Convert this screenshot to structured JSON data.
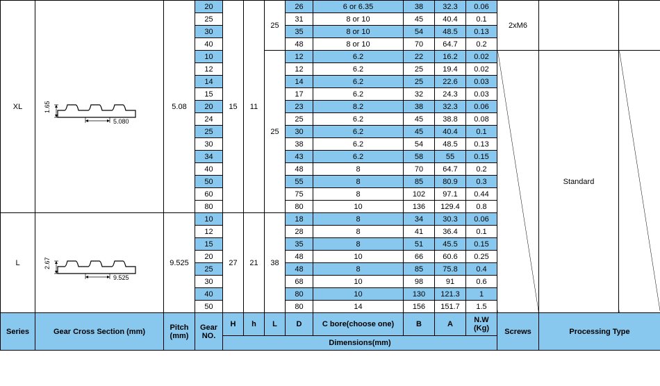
{
  "header": {
    "series": "Series",
    "gear_cross_section": "Gear Cross Section (mm)",
    "pitch": "Pitch (mm)",
    "gear_no": "Gear NO.",
    "H": "H",
    "h": "h",
    "L": "L",
    "D": "D",
    "C": "C bore(choose one)",
    "B": "B",
    "A": "A",
    "NW": "N.W (Kg)",
    "dimensions": "Dimensions(mm)",
    "screws": "Screws",
    "processing_type": "Processing Type"
  },
  "xl": {
    "series": "XL",
    "pitch": "5.08",
    "h": "15",
    "L1": "11",
    "L2": "25",
    "screws": "2xM6",
    "standard": "Standard",
    "profile_height": "1.65",
    "profile_pitch": "5.080",
    "top_gears": [
      "20",
      "25",
      "30",
      "40"
    ],
    "top_L": "25",
    "top_rows": [
      {
        "D": "26",
        "C": "6 or 6.35",
        "B": "38",
        "A": "32.3",
        "NW": "0.06",
        "blue": true
      },
      {
        "D": "31",
        "C": "8 or 10",
        "B": "45",
        "A": "40.4",
        "NW": "0.1",
        "blue": false
      },
      {
        "D": "35",
        "C": "8 or 10",
        "B": "54",
        "A": "48.5",
        "NW": "0.13",
        "blue": true
      },
      {
        "D": "48",
        "C": "8 or 10",
        "B": "70",
        "A": "64.7",
        "NW": "0.2",
        "blue": false
      }
    ],
    "main_gears": [
      {
        "v": "10",
        "blue": true
      },
      {
        "v": "12",
        "blue": false
      },
      {
        "v": "14",
        "blue": true
      },
      {
        "v": "15",
        "blue": false
      },
      {
        "v": "20",
        "blue": true
      },
      {
        "v": "24",
        "blue": false
      },
      {
        "v": "25",
        "blue": true
      },
      {
        "v": "30",
        "blue": false
      },
      {
        "v": "34",
        "blue": true
      },
      {
        "v": "40",
        "blue": false
      },
      {
        "v": "50",
        "blue": true
      },
      {
        "v": "60",
        "blue": false
      },
      {
        "v": "80",
        "blue": false
      }
    ],
    "main_L": "25",
    "main_rows": [
      {
        "D": "12",
        "C": "6.2",
        "B": "22",
        "A": "16.2",
        "NW": "0.02",
        "blue": true
      },
      {
        "D": "12",
        "C": "6.2",
        "B": "25",
        "A": "19.4",
        "NW": "0.02",
        "blue": false
      },
      {
        "D": "14",
        "C": "6.2",
        "B": "25",
        "A": "22.6",
        "NW": "0.03",
        "blue": true
      },
      {
        "D": "17",
        "C": "6.2",
        "B": "32",
        "A": "24.3",
        "NW": "0.03",
        "blue": false
      },
      {
        "D": "23",
        "C": "8.2",
        "B": "38",
        "A": "32.3",
        "NW": "0.06",
        "blue": true
      },
      {
        "D": "25",
        "C": "6.2",
        "B": "45",
        "A": "38.8",
        "NW": "0.08",
        "blue": false
      },
      {
        "D": "30",
        "C": "6.2",
        "B": "45",
        "A": "40.4",
        "NW": "0.1",
        "blue": true
      },
      {
        "D": "38",
        "C": "6.2",
        "B": "54",
        "A": "48.5",
        "NW": "0.13",
        "blue": false
      },
      {
        "D": "43",
        "C": "6.2",
        "B": "58",
        "A": "55",
        "NW": "0.15",
        "blue": true
      },
      {
        "D": "48",
        "C": "8",
        "B": "70",
        "A": "64.7",
        "NW": "0.2",
        "blue": false
      },
      {
        "D": "55",
        "C": "8",
        "B": "85",
        "A": "80.9",
        "NW": "0.3",
        "blue": true
      },
      {
        "D": "75",
        "C": "8",
        "B": "102",
        "A": "97.1",
        "NW": "0.44",
        "blue": false
      },
      {
        "D": "80",
        "C": "10",
        "B": "136",
        "A": "129.4",
        "NW": "0.8",
        "blue": false
      }
    ]
  },
  "l": {
    "series": "L",
    "pitch": "9.525",
    "h": "27",
    "L1": "21",
    "L2": "38",
    "profile_height": "2.67",
    "profile_pitch": "9.525",
    "gears": [
      {
        "v": "10",
        "blue": true
      },
      {
        "v": "12",
        "blue": false
      },
      {
        "v": "15",
        "blue": true
      },
      {
        "v": "20",
        "blue": false
      },
      {
        "v": "25",
        "blue": true
      },
      {
        "v": "30",
        "blue": false
      },
      {
        "v": "40",
        "blue": true
      },
      {
        "v": "50",
        "blue": false
      }
    ],
    "rows": [
      {
        "D": "18",
        "C": "8",
        "B": "34",
        "A": "30.3",
        "NW": "0.06",
        "blue": true
      },
      {
        "D": "28",
        "C": "8",
        "B": "41",
        "A": "36.4",
        "NW": "0.1",
        "blue": false
      },
      {
        "D": "35",
        "C": "8",
        "B": "51",
        "A": "45.5",
        "NW": "0.15",
        "blue": true
      },
      {
        "D": "48",
        "C": "10",
        "B": "66",
        "A": "60.6",
        "NW": "0.25",
        "blue": false
      },
      {
        "D": "48",
        "C": "8",
        "B": "85",
        "A": "75.8",
        "NW": "0.4",
        "blue": true
      },
      {
        "D": "68",
        "C": "10",
        "B": "98",
        "A": "91",
        "NW": "0.6",
        "blue": false
      },
      {
        "D": "80",
        "C": "10",
        "B": "130",
        "A": "121.3",
        "NW": "1",
        "blue": true
      },
      {
        "D": "80",
        "C": "14",
        "B": "156",
        "A": "151.7",
        "NW": "1.5",
        "blue": false
      }
    ]
  }
}
